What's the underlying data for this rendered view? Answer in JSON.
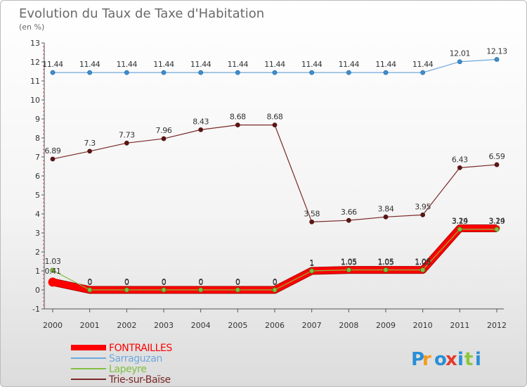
{
  "chart_data": {
    "type": "line",
    "title": "Evolution du Taux de Taxe d'Habitation",
    "subtitle": "(en %)",
    "xlabel": "",
    "ylabel": "",
    "ylim": [
      -1,
      13
    ],
    "yticks": [
      -1,
      0,
      1,
      2,
      3,
      4,
      5,
      6,
      7,
      8,
      9,
      10,
      11,
      12,
      13
    ],
    "x": [
      "2000",
      "2001",
      "2002",
      "2003",
      "2004",
      "2005",
      "2006",
      "2007",
      "2008",
      "2009",
      "2010",
      "2011",
      "2012"
    ],
    "grid": "none",
    "legend_position": "bottom-left",
    "series": [
      {
        "name": "FONTRAILLES",
        "color": "#ff0000",
        "values": [
          0.41,
          0,
          0,
          0,
          0,
          0,
          0,
          1,
          1.05,
          1.05,
          1.05,
          3.24,
          3.24
        ],
        "labels": [
          "0.41",
          "0",
          "0",
          "0",
          "0",
          "0",
          "0",
          "1",
          "1.05",
          "1.05",
          "1.05",
          "3.24",
          "3.24"
        ]
      },
      {
        "name": "Sarraguzan",
        "color": "#6fa8dc",
        "values": [
          11.44,
          11.44,
          11.44,
          11.44,
          11.44,
          11.44,
          11.44,
          11.44,
          11.44,
          11.44,
          11.44,
          12.01,
          12.13
        ],
        "labels": [
          "11.44",
          "11.44",
          "11.44",
          "11.44",
          "11.44",
          "11.44",
          "11.44",
          "11.44",
          "11.44",
          "11.44",
          "11.44",
          "12.01",
          "12.13"
        ]
      },
      {
        "name": "Lapeyre",
        "color": "#80c040",
        "values": [
          1.03,
          0,
          0,
          0,
          0,
          0,
          0,
          1,
          1.05,
          1.05,
          1.05,
          3.19,
          3.19
        ],
        "labels": [
          "1.03",
          "0",
          "0",
          "0",
          "0",
          "0",
          "0",
          "1",
          "1.05",
          "1.05",
          "1.05",
          "3.19",
          "3.19"
        ]
      },
      {
        "name": "Trie-sur-Baïse",
        "color": "#7a2828",
        "values": [
          6.89,
          7.3,
          7.73,
          7.96,
          8.43,
          8.68,
          8.68,
          3.58,
          3.66,
          3.84,
          3.95,
          6.43,
          6.59
        ],
        "labels": [
          "6.89",
          "7.3",
          "7.73",
          "7.96",
          "8.43",
          "8.68",
          "8.68",
          "3.58",
          "3.66",
          "3.84",
          "3.95",
          "6.43",
          "6.59"
        ]
      }
    ]
  },
  "logo": {
    "letters": [
      "P",
      "r",
      "o",
      "x",
      "i",
      "t",
      "i"
    ],
    "colors": [
      "#2a8fd6",
      "#f59a1b",
      "#2a8fd6",
      "#e63a2e",
      "#2a8fd6",
      "#8cc63f",
      "#2a8fd6"
    ]
  }
}
